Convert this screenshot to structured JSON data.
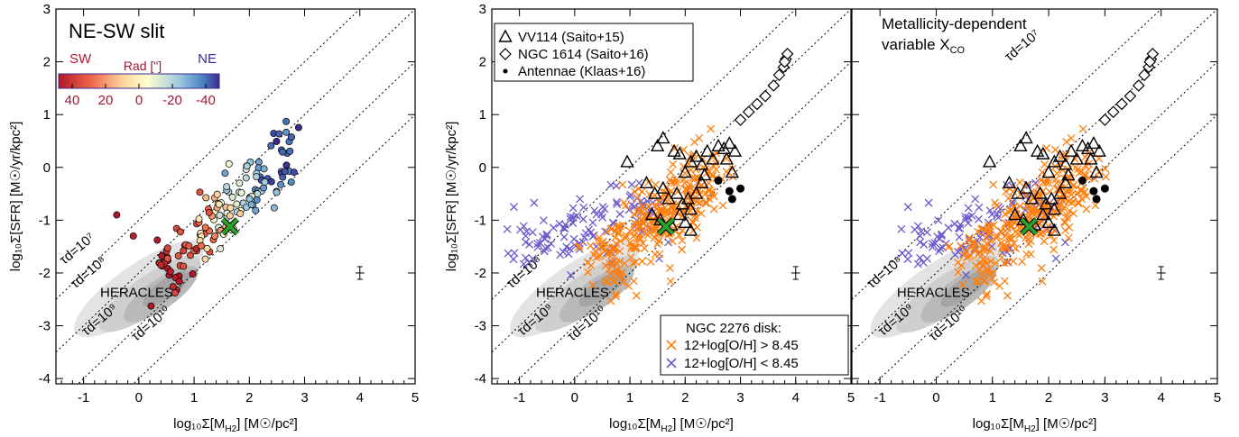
{
  "colors": {
    "orange": "#ff7f0e",
    "purple": "#6a5acd",
    "green": "#2ca02c",
    "grey": "#9a9a9a"
  },
  "common": {
    "xlabel_main": "log₁₀Σ[M",
    "xlabel_sub": "H2",
    "xlabel_end": "]  [M☉/pc²]",
    "ylabel": "log₁₀Σ[SFR]  [M☉/yr/kpc²]",
    "heracles": "HERACLES",
    "tau_labels": [
      "τd=10⁷",
      "τd=10⁸",
      "τd=10⁹",
      "τd=10¹⁰"
    ],
    "tau_values": [
      7,
      8,
      9,
      10
    ],
    "xlim": [
      -1.5,
      5
    ],
    "ylim": [
      -4.1,
      3
    ],
    "xticks": [
      "-1",
      "0",
      "1",
      "2",
      "3",
      "4",
      "5"
    ],
    "yticks": [
      "-4",
      "-3",
      "-2",
      "-1",
      "0",
      "1",
      "2",
      "3"
    ]
  },
  "panel1": {
    "title": "NE-SW slit",
    "colorbar": {
      "left": "SW",
      "center": "Rad [\"]",
      "right": "NE",
      "ticks": [
        "40",
        "20",
        "0",
        "-20",
        "-40"
      ]
    }
  },
  "panel2": {
    "legend": [
      {
        "symbol": "△",
        "label": "VV114 (Saito+15)"
      },
      {
        "symbol": "◇",
        "label": "NGC 1614 (Saito+16)"
      },
      {
        "symbol": "•",
        "label": "Antennae (Klaas+16)"
      }
    ],
    "legend2": {
      "title": "NGC 2276 disk:",
      "items": [
        {
          "symbol": "×",
          "label": "12+log[O/H] > 8.45"
        },
        {
          "symbol": "×",
          "label": "12+log[O/H] < 8.45"
        }
      ]
    }
  },
  "panel3": {
    "title_line1": "Metallicity-dependent",
    "title_line2": "variable X",
    "title_sub": "CO"
  },
  "chart_data": {
    "type": "scatter",
    "xlim": [
      -1.5,
      5
    ],
    "ylim": [
      -4.1,
      3
    ],
    "tau_lines": [
      7,
      8,
      9,
      10
    ],
    "vv114": [
      [
        1.5,
        0.4
      ],
      [
        1.6,
        0.55
      ],
      [
        1.8,
        0.3
      ],
      [
        1.9,
        0.25
      ],
      [
        2.0,
        -0.1
      ],
      [
        2.1,
        0.1
      ],
      [
        2.2,
        0.2
      ],
      [
        2.3,
        0.05
      ],
      [
        2.35,
        -0.15
      ],
      [
        2.4,
        0.3
      ],
      [
        2.5,
        0.15
      ],
      [
        2.6,
        0.4
      ],
      [
        2.7,
        0.35
      ],
      [
        2.8,
        0.45
      ],
      [
        2.9,
        0.3
      ],
      [
        2.75,
        0.15
      ],
      [
        2.85,
        -0.1
      ],
      [
        1.3,
        -0.3
      ],
      [
        1.45,
        -0.5
      ],
      [
        1.6,
        -0.4
      ],
      [
        1.7,
        -0.6
      ],
      [
        1.85,
        -0.5
      ],
      [
        1.95,
        -0.7
      ],
      [
        2.05,
        -0.6
      ],
      [
        2.1,
        -0.8
      ],
      [
        2.2,
        -0.5
      ],
      [
        1.4,
        -0.9
      ],
      [
        1.55,
        -1.0
      ],
      [
        1.75,
        -1.1
      ],
      [
        1.9,
        -0.9
      ],
      [
        2.0,
        -1.05
      ],
      [
        2.1,
        -1.2
      ],
      [
        0.95,
        0.1
      ],
      [
        2.3,
        -0.3
      ]
    ],
    "ngc1614": [
      [
        3.0,
        0.9
      ],
      [
        3.15,
        1.05
      ],
      [
        3.3,
        1.2
      ],
      [
        3.45,
        1.35
      ],
      [
        3.6,
        1.55
      ],
      [
        3.7,
        1.75
      ],
      [
        3.78,
        1.9
      ],
      [
        3.82,
        2.05
      ],
      [
        3.85,
        2.15
      ],
      [
        3.8,
        2.0
      ]
    ],
    "antennae": [
      [
        2.6,
        -0.25
      ],
      [
        2.8,
        -0.45
      ],
      [
        2.85,
        -0.6
      ],
      [
        3.0,
        -0.4
      ]
    ],
    "slit_range": [
      -45,
      45
    ],
    "error_bar": {
      "x": 4.0,
      "y": -2.0,
      "dx": 0.08,
      "dy": 0.12
    },
    "green_x": [
      1.65,
      -1.12
    ]
  }
}
